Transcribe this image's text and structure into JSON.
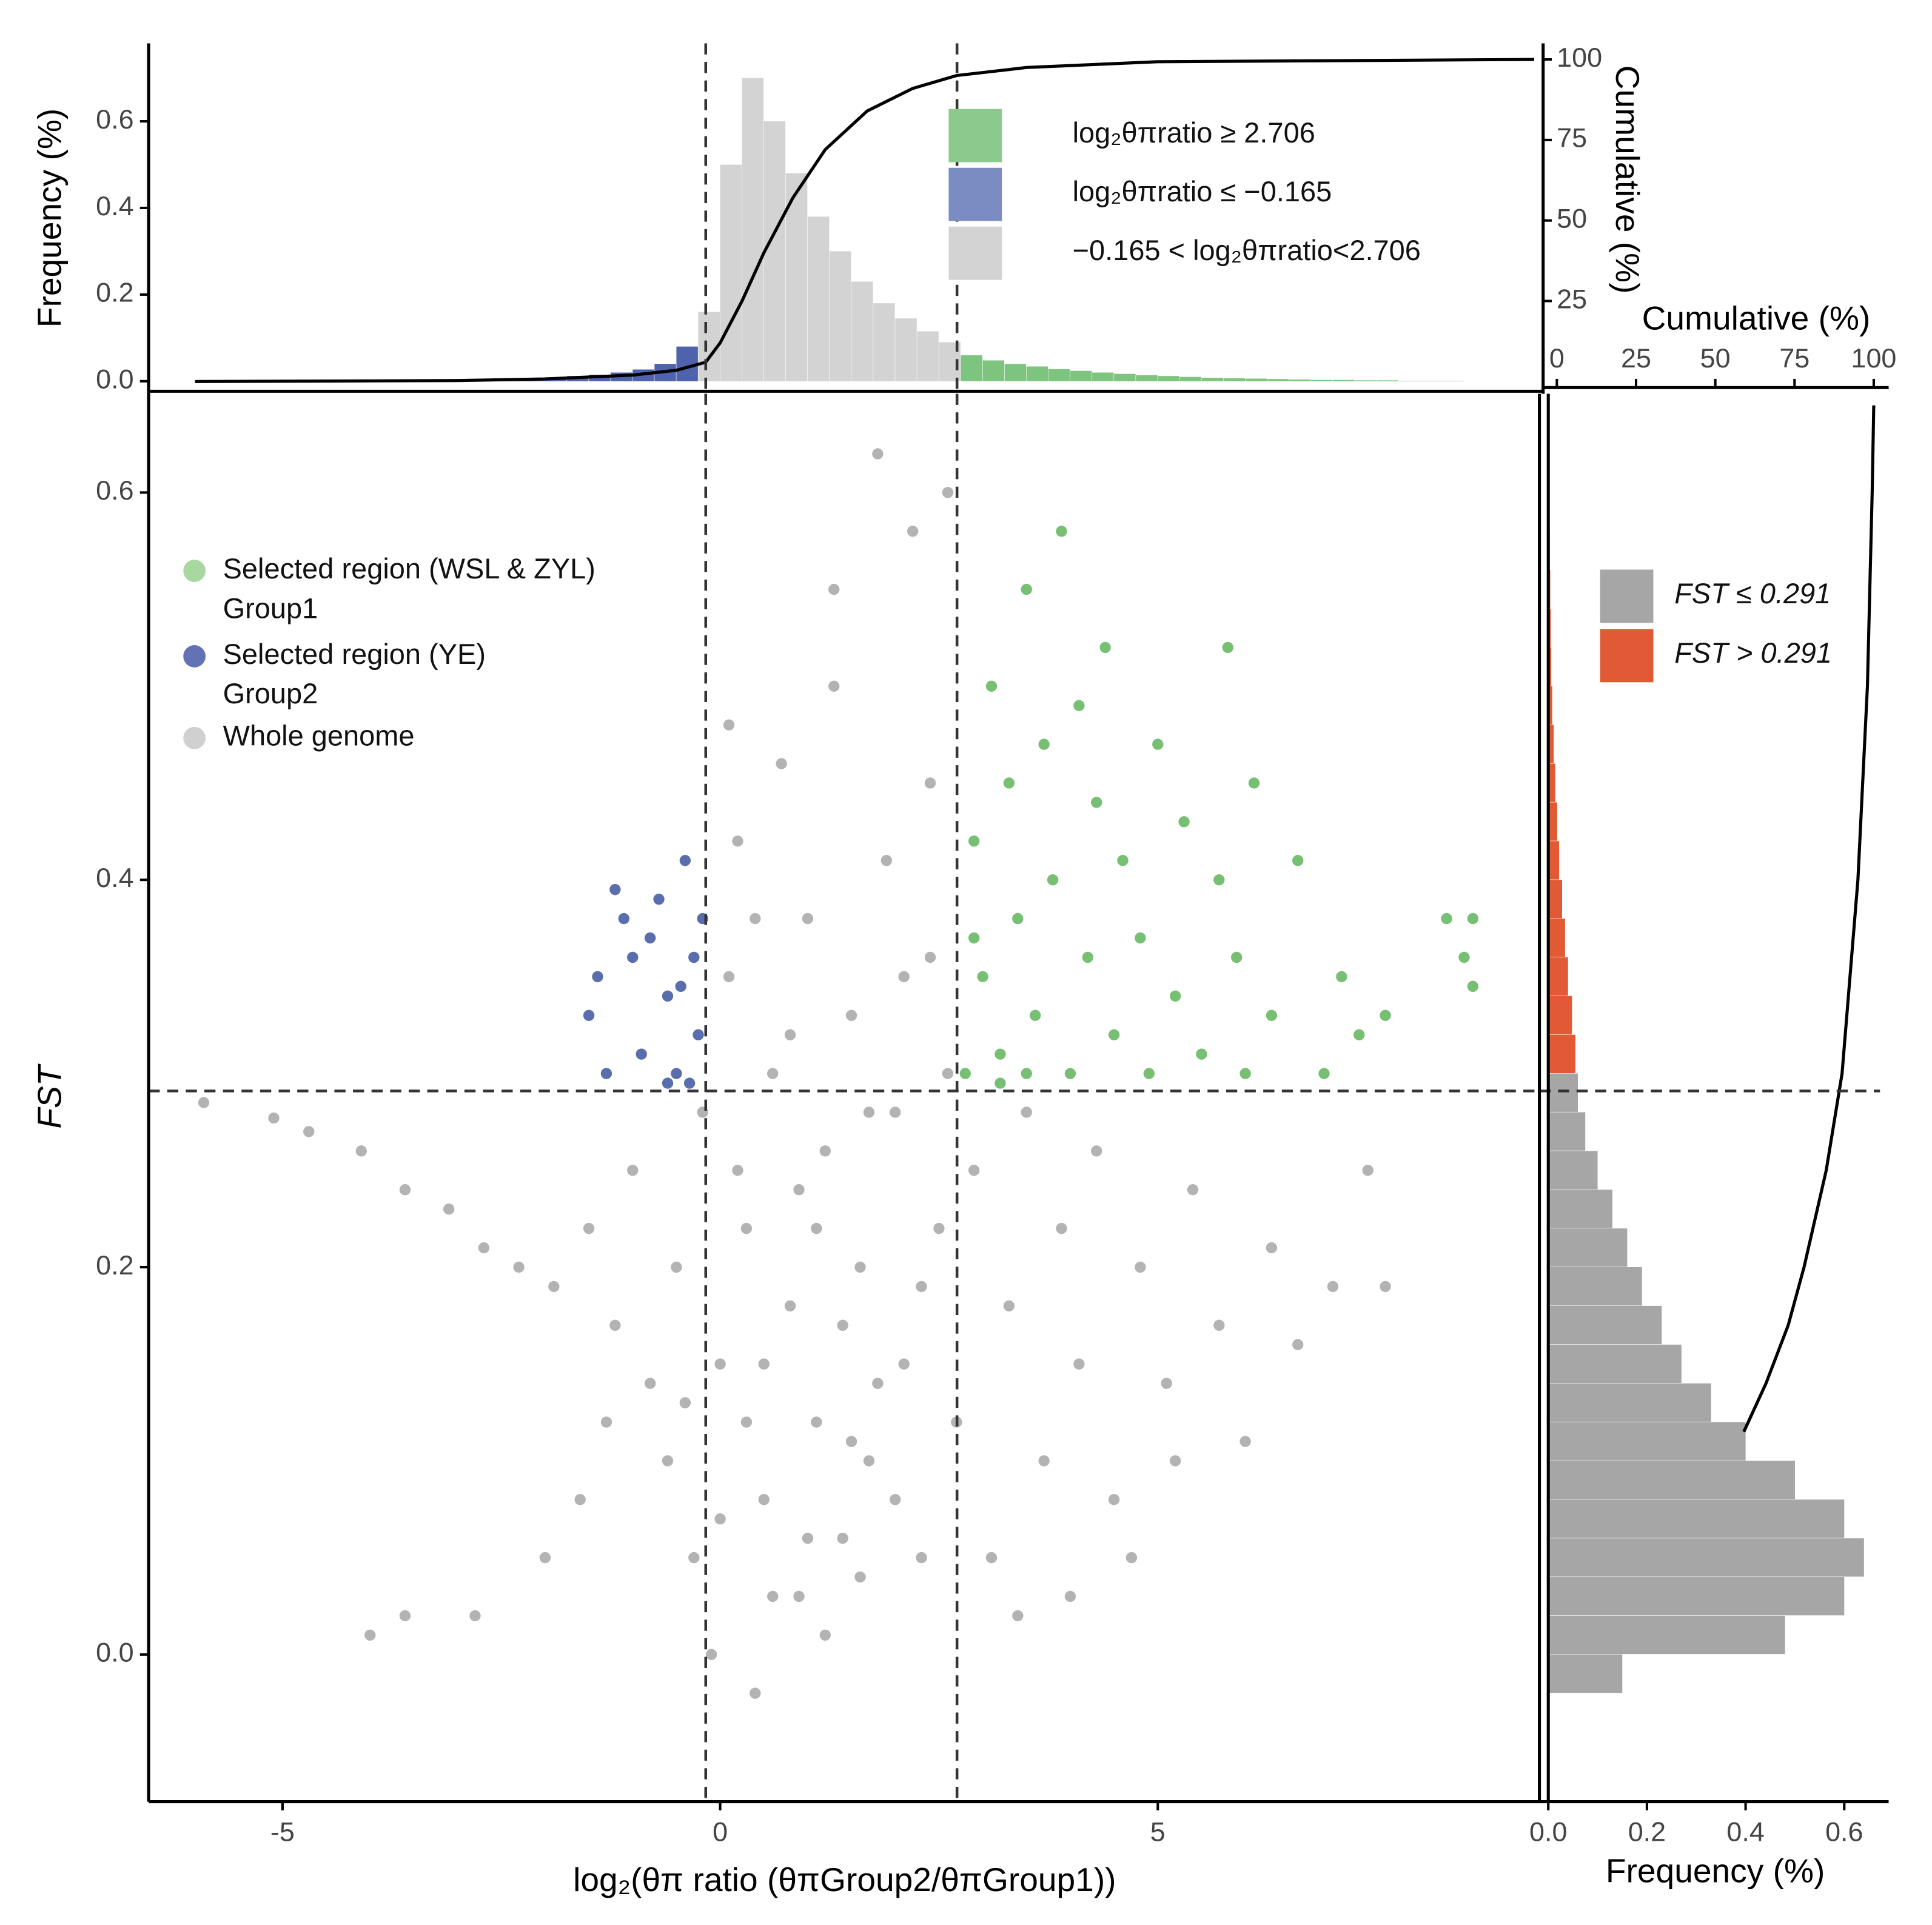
{
  "chart_data": [
    {
      "type": "histogram",
      "ylabel": "Frequency (%)",
      "y2label": "Cumulative (%)",
      "xlim": [
        -6.53,
        9.36
      ],
      "ylim": [
        -0.029,
        0.78
      ],
      "y2lim": [
        -3.8,
        105
      ],
      "yticks": [
        {
          "value": 0,
          "label": "0.0"
        },
        0.2,
        0.4,
        0.6
      ],
      "y2ticks": [
        25,
        50,
        75,
        100
      ],
      "thresholds": [
        -0.165,
        2.706
      ],
      "bins": [
        -6,
        -5.75,
        -5.5,
        -5.25,
        -5,
        -4.75,
        -4.5,
        -4.25,
        -4,
        -3.75,
        -3.5,
        -3.25,
        -3,
        -2.75,
        -2.5,
        -2.25,
        -2,
        -1.75,
        -1.5,
        -1.25,
        -1,
        -0.75,
        -0.5,
        -0.25,
        0,
        0.25,
        0.5,
        0.75,
        1,
        1.25,
        1.5,
        1.75,
        2,
        2.25,
        2.5,
        2.75,
        3,
        3.25,
        3.5,
        3.75,
        4,
        4.25,
        4.5,
        4.75,
        5,
        5.25,
        5.5,
        5.75,
        6,
        6.25,
        6.5,
        6.75,
        7,
        7.25,
        7.5,
        7.75,
        8,
        8.25,
        8.5,
        8.75,
        9
      ],
      "counts": [
        0,
        0,
        0,
        0,
        0,
        0,
        0,
        0,
        0.001,
        0.001,
        0.002,
        0.002,
        0.003,
        0.004,
        0.005,
        0.007,
        0.009,
        0.012,
        0.015,
        0.02,
        0.027,
        0.04,
        0.08,
        0.16,
        0.5,
        0.7,
        0.6,
        0.48,
        0.38,
        0.3,
        0.23,
        0.18,
        0.145,
        0.115,
        0.09,
        0.06,
        0.048,
        0.04,
        0.034,
        0.028,
        0.024,
        0.02,
        0.017,
        0.014,
        0.012,
        0.01,
        0.008,
        0.007,
        0.006,
        0.005,
        0.004,
        0.003,
        0.003,
        0.002,
        0.002,
        0.001,
        0.001,
        0.001,
        0,
        0
      ],
      "legend": [
        {
          "name": "log₂θπratio ≥ 2.706",
          "color": "#8cc98c",
          "bar_color": "#7dc57f"
        },
        {
          "name": "log₂θπratio ≤ −0.165",
          "color": "#7b8cc2",
          "bar_color": "#4f63ad"
        },
        {
          "name": "−0.165 < log₂θπratio<2.706",
          "color": "#d3d3d3",
          "bar_color": "#d3d3d3"
        }
      ],
      "cumulative": {
        "axis": "y2",
        "color": "#000000",
        "x": [
          -6,
          -3,
          -2,
          -1,
          -0.5,
          -0.165,
          0,
          0.25,
          0.5,
          0.83,
          1.2,
          1.68,
          2.2,
          2.7,
          3.5,
          5,
          9.3
        ],
        "values": [
          0,
          0.3,
          0.8,
          2,
          3.5,
          6,
          12,
          25,
          40,
          57,
          72,
          84,
          91,
          95,
          97.5,
          99.3,
          100
        ]
      }
    },
    {
      "type": "scatter",
      "xlabel": "log₂(θπ ratio (θπGroup2/θπGroup1))",
      "ylabel": "FST",
      "xlim": [
        -6.53,
        9.36
      ],
      "ylim": [
        -0.076,
        0.651
      ],
      "xticks": [
        -5,
        0,
        5
      ],
      "yticks": [
        {
          "value": 0,
          "label": "0.0"
        },
        0.2,
        0.4,
        0.6
      ],
      "vlines": [
        -0.165,
        2.706
      ],
      "hline": 0.291,
      "series": [
        {
          "name": "Whole genome",
          "color": "#a6a6a6",
          "legend_color": "#d0d0d0",
          "x": [
            -5.9,
            -5.1,
            -4.7,
            -4.1,
            -3.6,
            -3.1,
            -2.7,
            -2.3,
            -1.9,
            -1.5,
            -1.2,
            -1.0,
            -0.8,
            -0.6,
            -0.5,
            -0.3,
            -0.2,
            -0.1,
            0,
            0.1,
            0.2,
            0.3,
            0.4,
            0.5,
            0.6,
            0.7,
            0.8,
            0.9,
            1.0,
            1.1,
            1.2,
            1.3,
            1.4,
            1.5,
            1.6,
            1.7,
            1.8,
            1.9,
            2.0,
            2.1,
            2.2,
            2.3,
            2.4,
            2.5,
            2.6,
            2.7,
            2.9,
            3.1,
            3.3,
            3.5,
            3.7,
            3.9,
            4.1,
            4.3,
            4.5,
            4.8,
            5.1,
            5.4,
            5.7,
            6.0,
            6.3,
            6.6,
            7.0,
            7.4,
            7.6,
            -4.0,
            -3.6,
            -2.8,
            -2.0,
            -1.6,
            -1.3,
            4.0,
            4.7,
            5.2,
            0.2,
            0.5,
            0.8,
            1.1,
            1.4,
            1.7,
            2.0,
            2.3,
            0.0,
            0.3,
            0.6,
            0.9,
            1.2,
            1.5,
            1.8,
            2.1,
            2.4,
            2.6,
            0.4,
            1.0,
            1.6,
            -0.4,
            3.4,
            0.1,
            1.3
          ],
          "values": [
            0.285,
            0.277,
            0.27,
            0.26,
            0.24,
            0.23,
            0.21,
            0.2,
            0.19,
            0.22,
            0.17,
            0.25,
            0.14,
            0.1,
            0.2,
            0.05,
            0.28,
            0.0,
            0.15,
            0.35,
            0.42,
            0.22,
            -0.02,
            0.08,
            0.3,
            0.46,
            0.18,
            0.03,
            0.38,
            0.12,
            0.26,
            0.5,
            0.06,
            0.33,
            0.2,
            0.1,
            0.62,
            0.41,
            0.28,
            0.15,
            0.58,
            0.05,
            0.36,
            0.22,
            0.6,
            0.12,
            0.25,
            0.05,
            0.18,
            0.28,
            0.1,
            0.22,
            0.15,
            0.26,
            0.08,
            0.2,
            0.14,
            0.24,
            0.17,
            0.11,
            0.21,
            0.16,
            0.19,
            0.25,
            0.19,
            0.01,
            0.02,
            0.02,
            0.05,
            0.08,
            0.12,
            0.03,
            0.05,
            0.1,
            0.25,
            0.15,
            0.32,
            0.22,
            0.17,
            0.28,
            0.08,
            0.19,
            0.07,
            0.12,
            0.03,
            0.24,
            0.01,
            0.11,
            0.14,
            0.35,
            0.45,
            0.3,
            0.38,
            0.06,
            0.04,
            0.13,
            0.02,
            0.48,
            0.55
          ]
        },
        {
          "name": "Selected region (WSL & ZYL)",
          "group": "Group1",
          "color": "#5fb55a",
          "legend_color": "#a8d8a0",
          "x": [
            2.8,
            2.9,
            3.0,
            3.1,
            3.2,
            3.3,
            3.4,
            3.5,
            3.6,
            3.7,
            3.8,
            3.9,
            4.0,
            4.1,
            4.2,
            4.3,
            4.5,
            4.6,
            4.8,
            5.0,
            5.2,
            5.3,
            5.5,
            5.7,
            5.9,
            6.1,
            6.3,
            6.6,
            6.9,
            7.1,
            7.3,
            7.6,
            8.3,
            8.6,
            8.5,
            8.6,
            5.8,
            4.4,
            3.2,
            2.9,
            3.5,
            4.9,
            6.0
          ],
          "values": [
            0.3,
            0.42,
            0.35,
            0.5,
            0.31,
            0.45,
            0.38,
            0.55,
            0.33,
            0.47,
            0.4,
            0.58,
            0.3,
            0.49,
            0.36,
            0.44,
            0.32,
            0.41,
            0.37,
            0.47,
            0.34,
            0.43,
            0.31,
            0.4,
            0.36,
            0.45,
            0.33,
            0.41,
            0.3,
            0.35,
            0.32,
            0.33,
            0.38,
            0.38,
            0.36,
            0.345,
            0.52,
            0.52,
            0.295,
            0.37,
            0.3,
            0.3,
            0.3
          ]
        },
        {
          "name": "Selected region (YE)",
          "group": "Group2",
          "color": "#3d559f",
          "legend_color": "#6272b5",
          "x": [
            -1.5,
            -1.4,
            -1.2,
            -1.1,
            -1.0,
            -0.9,
            -0.8,
            -0.7,
            -0.6,
            -0.5,
            -0.4,
            -0.3,
            -0.25,
            -0.35,
            -0.6,
            -1.3,
            -0.2,
            -0.45
          ],
          "values": [
            0.33,
            0.35,
            0.395,
            0.38,
            0.36,
            0.31,
            0.37,
            0.39,
            0.34,
            0.3,
            0.41,
            0.36,
            0.32,
            0.295,
            0.295,
            0.3,
            0.38,
            0.345
          ]
        }
      ]
    },
    {
      "type": "histogram",
      "orientation": "horizontal",
      "xlabel": "Frequency (%)",
      "x2label": "Cumulative (%)",
      "xlim": [
        -0.018,
        0.69
      ],
      "ylim": [
        -0.076,
        0.651
      ],
      "x2lim": [
        -5.5,
        104.7
      ],
      "xticks": [
        {
          "value": 0,
          "label": "0.0"
        },
        0.2,
        0.4,
        0.6
      ],
      "x2ticks": [
        0,
        25,
        50,
        75,
        100
      ],
      "threshold": 0.291,
      "bins": [
        -0.02,
        0,
        0.02,
        0.04,
        0.06,
        0.08,
        0.1,
        0.12,
        0.14,
        0.16,
        0.18,
        0.2,
        0.22,
        0.24,
        0.26,
        0.28,
        0.3,
        0.32,
        0.34,
        0.36,
        0.38,
        0.4,
        0.42,
        0.44,
        0.46,
        0.48,
        0.5,
        0.52,
        0.54,
        0.56,
        0.58,
        0.6,
        0.62,
        0.64
      ],
      "counts": [
        0.15,
        0.48,
        0.6,
        0.64,
        0.6,
        0.5,
        0.4,
        0.33,
        0.27,
        0.23,
        0.19,
        0.16,
        0.13,
        0.1,
        0.075,
        0.06,
        0.055,
        0.048,
        0.04,
        0.034,
        0.028,
        0.022,
        0.018,
        0.014,
        0.011,
        0.008,
        0.006,
        0.005,
        0.004,
        0.003,
        0.002,
        0.001,
        0.001
      ],
      "legend": [
        {
          "name": "FST ≤ 0.291",
          "color": "#a6a6a6"
        },
        {
          "name": "FST > 0.291",
          "color": "#e25a35"
        }
      ],
      "cumulative": {
        "axis": "x2",
        "color": "#000000",
        "y": [
          0.115,
          0.14,
          0.17,
          0.2,
          0.25,
          0.3,
          0.4,
          0.5,
          0.6,
          0.645
        ],
        "values": [
          59,
          66,
          73,
          78,
          85,
          90,
          95,
          98,
          99.5,
          100
        ]
      }
    }
  ]
}
